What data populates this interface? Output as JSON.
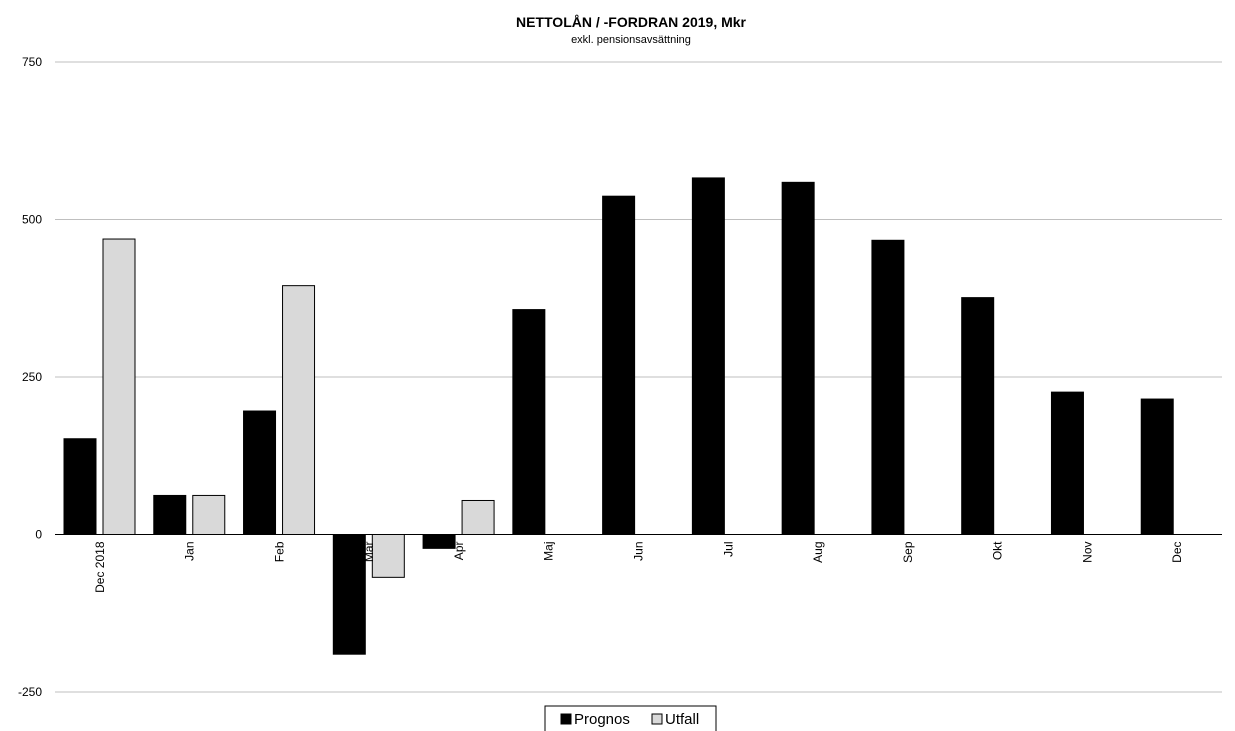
{
  "chart_data": {
    "type": "bar",
    "title": "NETTOLÅN / -FORDRAN 2019, Mkr",
    "subtitle": "exkl. pensionsavsättning",
    "xlabel": "",
    "ylabel": "",
    "categories": [
      "Dec 2018",
      "Jan",
      "Feb",
      "Mar",
      "Apr",
      "Maj",
      "Jun",
      "Jul",
      "Aug",
      "Sep",
      "Okt",
      "Nov",
      "Dec"
    ],
    "series": [
      {
        "name": "Prognos",
        "color": "#000000",
        "values": [
          152,
          62,
          196,
          -190,
          -22,
          357,
          537,
          566,
          559,
          467,
          376,
          226,
          215
        ]
      },
      {
        "name": "Utfall",
        "color": "#d9d9d9",
        "values": [
          469,
          62,
          395,
          -68,
          54,
          null,
          null,
          null,
          null,
          null,
          null,
          null,
          null
        ]
      }
    ],
    "ylim": [
      -250,
      750
    ],
    "yticks": [
      -250,
      0,
      250,
      500,
      750
    ],
    "grid": true,
    "legend": "bottom-center"
  }
}
